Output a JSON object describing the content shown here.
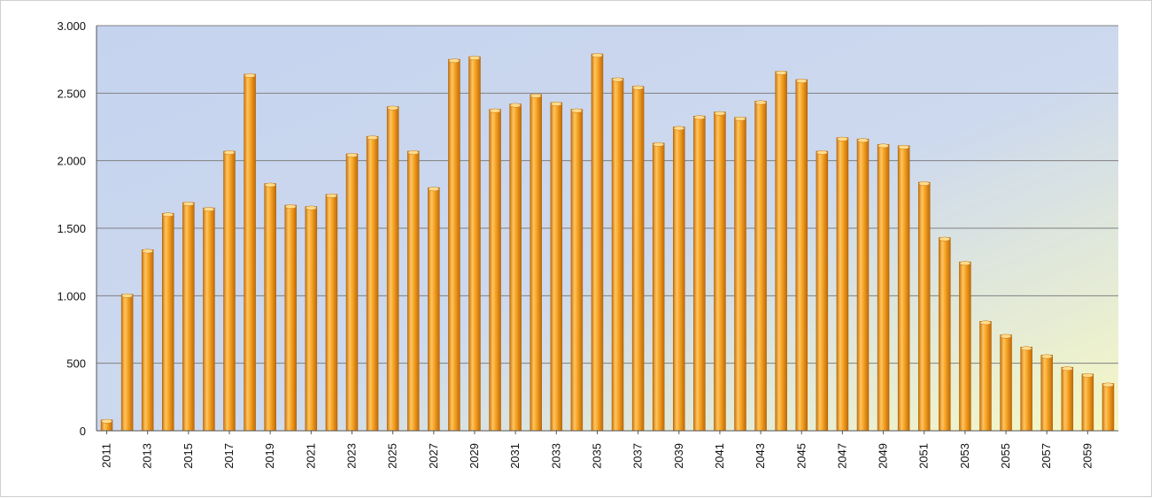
{
  "chart_data": {
    "type": "bar",
    "title": "",
    "xlabel": "",
    "ylabel": "",
    "ylim": [
      0,
      3000
    ],
    "yticks": [
      {
        "value": 0,
        "label": "0"
      },
      {
        "value": 500,
        "label": "500"
      },
      {
        "value": 1000,
        "label": "1.000"
      },
      {
        "value": 1500,
        "label": "1.500"
      },
      {
        "value": 2000,
        "label": "2.000"
      },
      {
        "value": 2500,
        "label": "2.500"
      },
      {
        "value": 3000,
        "label": "3.000"
      }
    ],
    "grid": true,
    "legend": "none",
    "categories": [
      "2011",
      "2012",
      "2013",
      "2014",
      "2015",
      "2016",
      "2017",
      "2018",
      "2019",
      "2020",
      "2021",
      "2022",
      "2023",
      "2024",
      "2025",
      "2026",
      "2027",
      "2028",
      "2029",
      "2030",
      "2031",
      "2032",
      "2033",
      "2034",
      "2035",
      "2036",
      "2037",
      "2038",
      "2039",
      "2040",
      "2041",
      "2042",
      "2043",
      "2044",
      "2045",
      "2046",
      "2047",
      "2048",
      "2049",
      "2050",
      "2051",
      "2052",
      "2053",
      "2054",
      "2055",
      "2056",
      "2057",
      "2058",
      "2059",
      "2060"
    ],
    "xtick_labels": [
      "2011",
      "2013",
      "2015",
      "2017",
      "2019",
      "2021",
      "2023",
      "2025",
      "2027",
      "2029",
      "2031",
      "2033",
      "2035",
      "2037",
      "2039",
      "2041",
      "2043",
      "2045",
      "2047",
      "2049",
      "2051",
      "2053",
      "2055",
      "2057",
      "2059"
    ],
    "values": [
      80,
      1010,
      1340,
      1610,
      1690,
      1650,
      2070,
      2640,
      1830,
      1670,
      1660,
      1750,
      2050,
      2180,
      2400,
      2070,
      1800,
      2750,
      2770,
      2380,
      2420,
      2490,
      2430,
      2380,
      2790,
      2610,
      2550,
      2130,
      2250,
      2330,
      2360,
      2320,
      2440,
      2660,
      2600,
      2070,
      2170,
      2160,
      2120,
      2110,
      1840,
      1430,
      1250,
      810,
      710,
      620,
      560,
      470,
      420,
      350
    ],
    "colors": {
      "bar_light": "#ffd38a",
      "bar_mid": "#f5a31e",
      "bar_dark": "#c4700a",
      "bg_top_left": "#c9d5ee",
      "bg_bottom_right": "#f5f7c8",
      "grid": "#808080"
    }
  }
}
